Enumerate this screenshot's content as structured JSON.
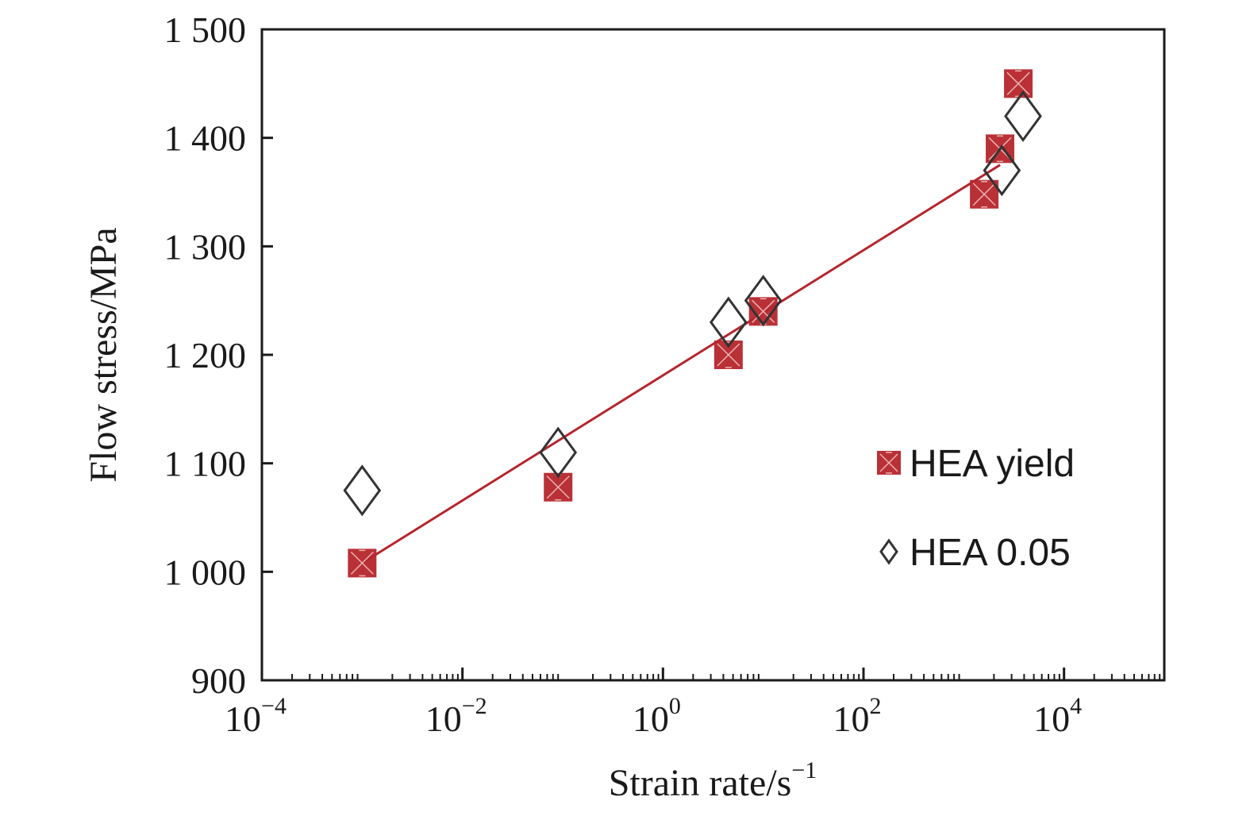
{
  "chart_data": {
    "type": "scatter",
    "xlabel": "Strain rate/s",
    "xlabel_exponent": "−1",
    "ylabel": "Flow stress/MPa",
    "xscale": "log",
    "xlim": [
      0.0001,
      100000
    ],
    "ylim": [
      900,
      1500
    ],
    "x_ticks": [
      {
        "value": 0.0001,
        "base": "10",
        "exp": "−4"
      },
      {
        "value": 0.01,
        "base": "10",
        "exp": "−2"
      },
      {
        "value": 1,
        "base": "10",
        "exp": "0"
      },
      {
        "value": 100,
        "base": "10",
        "exp": "2"
      },
      {
        "value": 10000,
        "base": "10",
        "exp": "4"
      }
    ],
    "y_ticks": [
      {
        "value": 900,
        "label": "900"
      },
      {
        "value": 1000,
        "label": "1 000"
      },
      {
        "value": 1100,
        "label": "1 100"
      },
      {
        "value": 1200,
        "label": "1 200"
      },
      {
        "value": 1300,
        "label": "1 300"
      },
      {
        "value": 1400,
        "label": "1 400"
      },
      {
        "value": 1500,
        "label": "1 500"
      }
    ],
    "grid": false,
    "legend_position": "right-middle",
    "series": [
      {
        "name": "HEA yield",
        "marker": "square-cross",
        "color": "#b5262c",
        "points": [
          {
            "x": 0.001,
            "y": 1008
          },
          {
            "x": 0.09,
            "y": 1078
          },
          {
            "x": 4.5,
            "y": 1200
          },
          {
            "x": 10,
            "y": 1240
          },
          {
            "x": 1600,
            "y": 1348
          },
          {
            "x": 2300,
            "y": 1390
          },
          {
            "x": 3500,
            "y": 1450
          }
        ]
      },
      {
        "name": "HEA 0.05",
        "marker": "open-diamond",
        "color": "#333333",
        "points": [
          {
            "x": 0.001,
            "y": 1075
          },
          {
            "x": 0.09,
            "y": 1110
          },
          {
            "x": 4.5,
            "y": 1230
          },
          {
            "x": 10,
            "y": 1250
          },
          {
            "x": 2400,
            "y": 1370
          },
          {
            "x": 3900,
            "y": 1420
          }
        ]
      }
    ],
    "fit_line": {
      "color": "#b5262c",
      "x": [
        0.001,
        2300
      ],
      "y": [
        1008,
        1375
      ]
    }
  }
}
